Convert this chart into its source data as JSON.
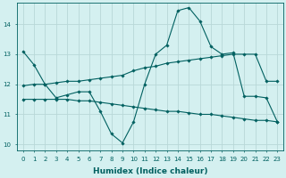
{
  "xlabel": "Humidex (Indice chaleur)",
  "bg_color": "#d4f0f0",
  "line_color": "#006060",
  "grid_color": "#b8d8d8",
  "xlim": [
    -0.5,
    23.5
  ],
  "ylim": [
    9.8,
    14.7
  ],
  "yticks": [
    10,
    11,
    12,
    13,
    14
  ],
  "xticks": [
    0,
    1,
    2,
    3,
    4,
    5,
    6,
    7,
    8,
    9,
    10,
    11,
    12,
    13,
    14,
    15,
    16,
    17,
    18,
    19,
    20,
    21,
    22,
    23
  ],
  "line1_x": [
    0,
    1,
    2,
    3,
    4,
    5,
    6,
    7,
    8,
    9,
    10,
    11,
    12,
    13,
    14,
    15,
    16,
    17,
    18,
    19,
    20,
    21,
    22,
    23
  ],
  "line1_y": [
    13.1,
    12.65,
    12.0,
    11.55,
    11.65,
    11.75,
    11.75,
    11.1,
    10.35,
    10.05,
    10.75,
    12.0,
    13.0,
    13.3,
    14.45,
    14.55,
    14.1,
    13.25,
    13.0,
    13.05,
    11.6,
    11.6,
    11.55,
    10.75
  ],
  "line2_x": [
    0,
    1,
    2,
    3,
    4,
    5,
    6,
    7,
    8,
    9,
    10,
    11,
    12,
    13,
    14,
    15,
    16,
    17,
    18,
    19,
    20,
    21,
    22,
    23
  ],
  "line2_y": [
    11.95,
    12.0,
    12.0,
    12.05,
    12.1,
    12.1,
    12.15,
    12.2,
    12.25,
    12.3,
    12.45,
    12.55,
    12.6,
    12.7,
    12.75,
    12.8,
    12.85,
    12.9,
    12.95,
    13.0,
    13.0,
    13.0,
    12.1,
    12.1
  ],
  "line3_x": [
    0,
    1,
    2,
    3,
    4,
    5,
    6,
    7,
    8,
    9,
    10,
    11,
    12,
    13,
    14,
    15,
    16,
    17,
    18,
    19,
    20,
    21,
    22,
    23
  ],
  "line3_y": [
    11.5,
    11.5,
    11.5,
    11.5,
    11.5,
    11.45,
    11.45,
    11.4,
    11.35,
    11.3,
    11.25,
    11.2,
    11.15,
    11.1,
    11.1,
    11.05,
    11.0,
    11.0,
    10.95,
    10.9,
    10.85,
    10.8,
    10.8,
    10.75
  ]
}
